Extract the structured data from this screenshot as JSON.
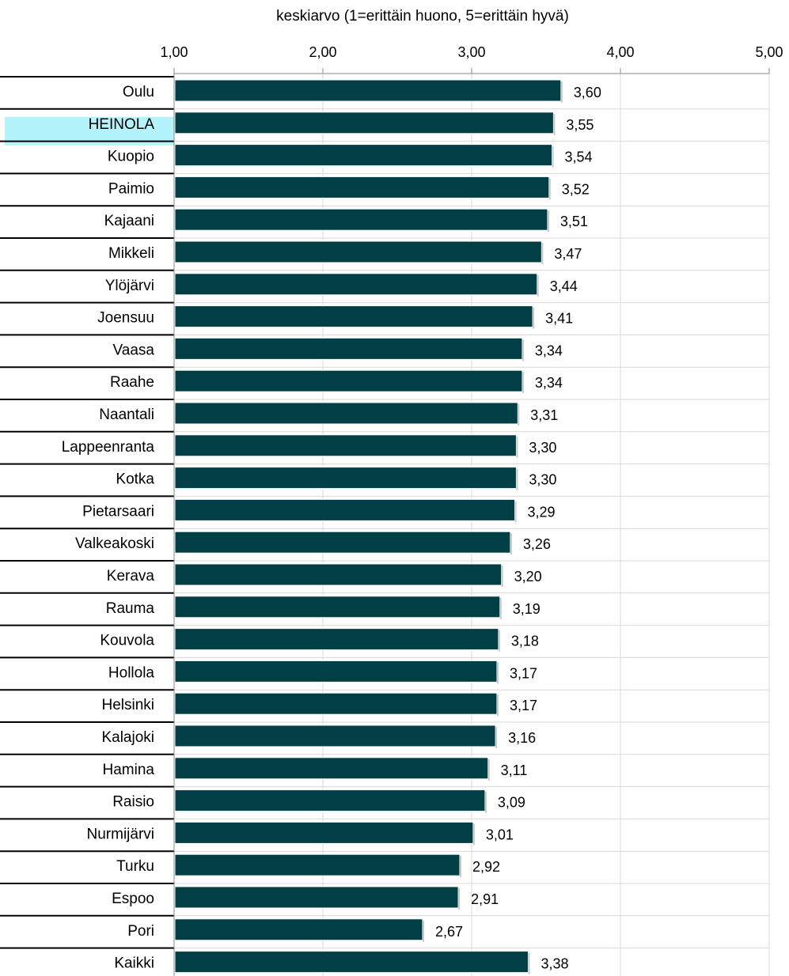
{
  "chart_data": {
    "type": "bar",
    "orientation": "horizontal",
    "title": "",
    "xlabel": "keskiarvo (1=erittäin huono, 5=erittäin hyvä)",
    "ylabel": "",
    "xlim": [
      1,
      5
    ],
    "ticks": [
      "1,00",
      "2,00",
      "3,00",
      "4,00",
      "5,00"
    ],
    "tick_values": [
      1,
      2,
      3,
      4,
      5
    ],
    "grid": true,
    "bar_color": "#003f46",
    "highlight_color": "#b3f3fb",
    "highlight_category": "HEINOLA",
    "categories": [
      "Oulu",
      "HEINOLA",
      "Kuopio",
      "Paimio",
      "Kajaani",
      "Mikkeli",
      "Ylöjärvi",
      "Joensuu",
      "Vaasa",
      "Raahe",
      "Naantali",
      "Lappeenranta",
      "Kotka",
      "Pietarsaari",
      "Valkeakoski",
      "Kerava",
      "Rauma",
      "Kouvola",
      "Hollola",
      "Helsinki",
      "Kalajoki",
      "Hamina",
      "Raisio",
      "Nurmijärvi",
      "Turku",
      "Espoo",
      "Pori",
      "Kaikki"
    ],
    "values": [
      3.6,
      3.55,
      3.54,
      3.52,
      3.51,
      3.47,
      3.44,
      3.41,
      3.34,
      3.34,
      3.31,
      3.3,
      3.3,
      3.29,
      3.26,
      3.2,
      3.19,
      3.18,
      3.17,
      3.17,
      3.16,
      3.11,
      3.09,
      3.01,
      2.92,
      2.91,
      2.67,
      3.38
    ],
    "value_labels": [
      "3,60",
      "3,55",
      "3,54",
      "3,52",
      "3,51",
      "3,47",
      "3,44",
      "3,41",
      "3,34",
      "3,34",
      "3,31",
      "3,30",
      "3,30",
      "3,29",
      "3,26",
      "3,20",
      "3,19",
      "3,18",
      "3,17",
      "3,17",
      "3,16",
      "3,11",
      "3,09",
      "3,01",
      "2,92",
      "2,91",
      "2,67",
      "3,38"
    ]
  }
}
